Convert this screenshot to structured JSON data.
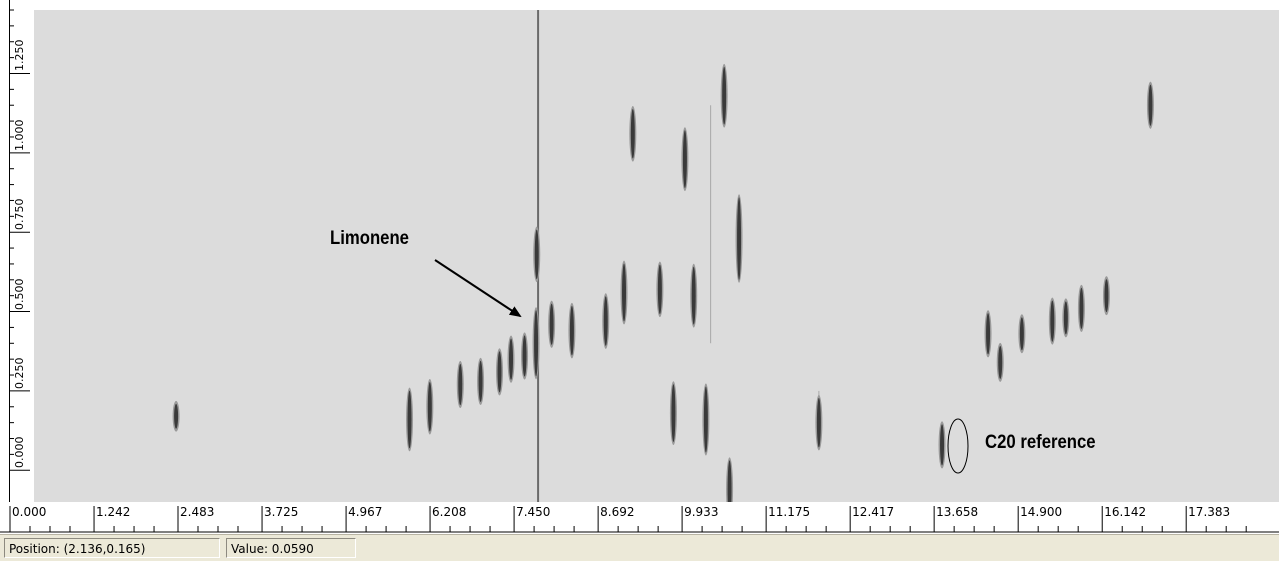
{
  "chart_data": {
    "type": "heatmap",
    "x_ticks": [
      "0.000",
      "1.242",
      "2.483",
      "3.725",
      "4.967",
      "6.208",
      "7.450",
      "8.692",
      "9.933",
      "11.175",
      "12.417",
      "13.658",
      "14.900",
      "16.142",
      "17.383"
    ],
    "y_ticks": [
      "0.000",
      "0.250",
      "0.500",
      "0.750",
      "1.000",
      "1.250"
    ],
    "xlim": [
      0,
      18.4
    ],
    "ylim": [
      -0.1,
      1.45
    ],
    "background_color": "#dcdcdc",
    "peak_color": "#3a3a3a",
    "peaks": [
      {
        "x": 2.1,
        "y": 0.17,
        "sx": 0.03,
        "sy": 0.03
      },
      {
        "x": 5.55,
        "y": 0.16,
        "sx": 0.07,
        "sy": 0.07
      },
      {
        "x": 5.85,
        "y": 0.2,
        "sx": 0.07,
        "sy": 0.06
      },
      {
        "x": 6.3,
        "y": 0.27,
        "sx": 0.06,
        "sy": 0.05
      },
      {
        "x": 6.6,
        "y": 0.28,
        "sx": 0.06,
        "sy": 0.05
      },
      {
        "x": 6.88,
        "y": 0.31,
        "sx": 0.06,
        "sy": 0.05
      },
      {
        "x": 7.05,
        "y": 0.35,
        "sx": 0.06,
        "sy": 0.05
      },
      {
        "x": 7.25,
        "y": 0.36,
        "sx": 0.05,
        "sy": 0.05
      },
      {
        "x": 7.42,
        "y": 0.4,
        "sx": 0.08,
        "sy": 0.08
      },
      {
        "x": 7.43,
        "y": 0.68,
        "sx": 0.05,
        "sy": 0.06
      },
      {
        "x": 7.65,
        "y": 0.46,
        "sx": 0.05,
        "sy": 0.05
      },
      {
        "x": 7.95,
        "y": 0.44,
        "sx": 0.05,
        "sy": 0.06
      },
      {
        "x": 8.45,
        "y": 0.47,
        "sx": 0.07,
        "sy": 0.06
      },
      {
        "x": 8.72,
        "y": 0.56,
        "sx": 0.06,
        "sy": 0.07
      },
      {
        "x": 8.85,
        "y": 1.06,
        "sx": 0.05,
        "sy": 0.06
      },
      {
        "x": 9.25,
        "y": 0.57,
        "sx": 0.06,
        "sy": 0.06
      },
      {
        "x": 9.45,
        "y": 0.18,
        "sx": 0.05,
        "sy": 0.07
      },
      {
        "x": 9.62,
        "y": 0.98,
        "sx": 0.05,
        "sy": 0.07
      },
      {
        "x": 9.75,
        "y": 0.55,
        "sx": 0.05,
        "sy": 0.07
      },
      {
        "x": 9.93,
        "y": 0.16,
        "sx": 0.05,
        "sy": 0.08
      },
      {
        "x": 10.2,
        "y": 1.18,
        "sx": 0.04,
        "sy": 0.07
      },
      {
        "x": 10.42,
        "y": 0.73,
        "sx": 0.08,
        "sy": 0.1
      },
      {
        "x": 10.28,
        "y": -0.06,
        "sx": 0.05,
        "sy": 0.07
      },
      {
        "x": 11.6,
        "y": 0.15,
        "sx": 0.04,
        "sy": 0.06
      },
      {
        "x": 13.42,
        "y": 0.08,
        "sx": 0.04,
        "sy": 0.05
      },
      {
        "x": 14.1,
        "y": 0.43,
        "sx": 0.05,
        "sy": 0.05
      },
      {
        "x": 14.28,
        "y": 0.34,
        "sx": 0.05,
        "sy": 0.04
      },
      {
        "x": 14.6,
        "y": 0.43,
        "sx": 0.05,
        "sy": 0.04
      },
      {
        "x": 15.05,
        "y": 0.47,
        "sx": 0.06,
        "sy": 0.05
      },
      {
        "x": 15.25,
        "y": 0.48,
        "sx": 0.05,
        "sy": 0.04
      },
      {
        "x": 15.48,
        "y": 0.51,
        "sx": 0.06,
        "sy": 0.05
      },
      {
        "x": 15.85,
        "y": 0.55,
        "sx": 0.04,
        "sy": 0.04
      },
      {
        "x": 16.5,
        "y": 1.15,
        "sx": 0.04,
        "sy": 0.05
      }
    ],
    "streaks": [
      {
        "x": 7.45,
        "y_from": -0.1,
        "y_to": 1.45
      },
      {
        "x": 10.0,
        "y_from": 0.4,
        "y_to": 1.15
      },
      {
        "x": 11.6,
        "y_from": 0.1,
        "y_to": 0.25
      }
    ]
  },
  "annotations": {
    "limonene_label": "Limonene",
    "c20_label": "C20 reference"
  },
  "status_bar": {
    "position": "Position: (2.136,0.165)",
    "value": "Value: 0.0590"
  }
}
